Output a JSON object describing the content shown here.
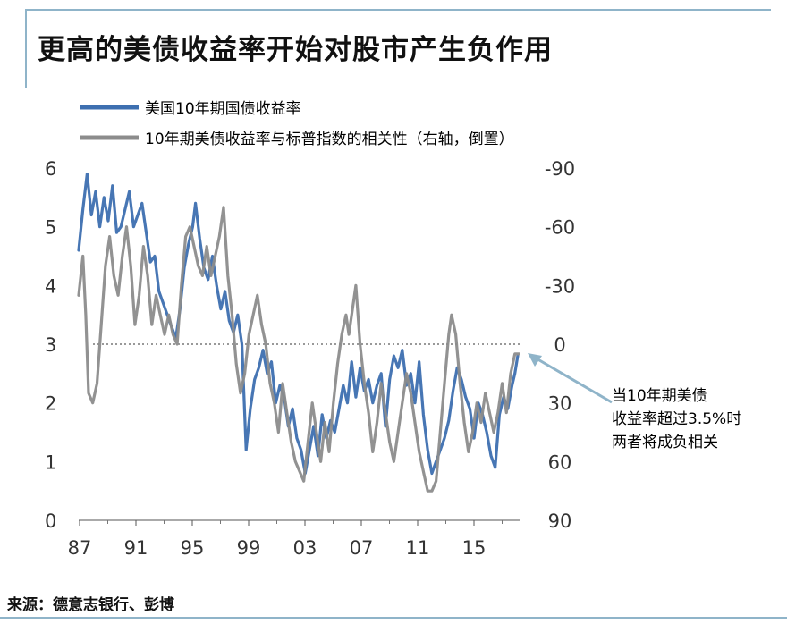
{
  "title": "更高的美债收益率开始对股市产生负作用",
  "source": "来源：德意志银行、彭博",
  "colors": {
    "yield": "#3d6fb0",
    "correlation": "#8c8c8c",
    "arrow": "#8fb4c9",
    "frame": "#8fb4c9"
  },
  "chart_data": {
    "type": "line",
    "legend_position": "top-left",
    "grid": false,
    "x_ticks": [
      "87",
      "91",
      "95",
      "99",
      "03",
      "07",
      "11",
      "15"
    ],
    "xlim": [
      1987,
      2018.4
    ],
    "y_left": {
      "ticks": [
        "6",
        "5",
        "4",
        "3",
        "2",
        "1",
        "0"
      ],
      "ylim": [
        0,
        6
      ]
    },
    "y_right": {
      "ticks": [
        "-90",
        "-60",
        "-30",
        "0",
        "30",
        "60",
        "90"
      ],
      "ylim": [
        -90,
        90
      ],
      "inverted": true
    },
    "reference_line": {
      "axis": "right",
      "value": 0,
      "style": "dotted"
    },
    "annotation": {
      "lines": [
        "当10年期美债",
        "收益率超过3.5%时",
        "两者将成负相关"
      ],
      "points_to": {
        "x": 2018.1,
        "y_right": 5
      }
    },
    "series": [
      {
        "name": "美国10年期国债收益率",
        "axis": "left",
        "points": [
          [
            1987.0,
            4.6
          ],
          [
            1987.3,
            5.3
          ],
          [
            1987.6,
            5.9
          ],
          [
            1987.9,
            5.2
          ],
          [
            1988.2,
            5.6
          ],
          [
            1988.5,
            5.0
          ],
          [
            1988.8,
            5.5
          ],
          [
            1989.1,
            5.1
          ],
          [
            1989.4,
            5.7
          ],
          [
            1989.7,
            4.9
          ],
          [
            1990.0,
            5.0
          ],
          [
            1990.3,
            5.3
          ],
          [
            1990.6,
            5.6
          ],
          [
            1990.9,
            5.0
          ],
          [
            1991.2,
            5.2
          ],
          [
            1991.5,
            5.4
          ],
          [
            1991.8,
            4.9
          ],
          [
            1992.1,
            4.4
          ],
          [
            1992.4,
            4.5
          ],
          [
            1992.7,
            3.9
          ],
          [
            1993.0,
            3.7
          ],
          [
            1993.3,
            3.5
          ],
          [
            1993.6,
            3.3
          ],
          [
            1993.9,
            3.1
          ],
          [
            1994.2,
            3.6
          ],
          [
            1994.5,
            4.3
          ],
          [
            1994.8,
            4.7
          ],
          [
            1995.1,
            5.0
          ],
          [
            1995.3,
            5.4
          ],
          [
            1995.6,
            4.8
          ],
          [
            1995.9,
            4.3
          ],
          [
            1996.2,
            4.1
          ],
          [
            1996.5,
            4.5
          ],
          [
            1996.8,
            4.0
          ],
          [
            1997.1,
            3.6
          ],
          [
            1997.4,
            3.9
          ],
          [
            1997.7,
            3.4
          ],
          [
            1998.0,
            3.2
          ],
          [
            1998.3,
            3.5
          ],
          [
            1998.6,
            3.0
          ],
          [
            1998.9,
            1.2
          ],
          [
            1999.2,
            1.9
          ],
          [
            1999.5,
            2.4
          ],
          [
            1999.8,
            2.6
          ],
          [
            2000.1,
            2.9
          ],
          [
            2000.4,
            2.5
          ],
          [
            2000.7,
            2.7
          ],
          [
            2001.0,
            2.0
          ],
          [
            2001.3,
            2.3
          ],
          [
            2001.6,
            2.1
          ],
          [
            2001.9,
            1.6
          ],
          [
            2002.2,
            1.9
          ],
          [
            2002.5,
            1.4
          ],
          [
            2002.8,
            1.2
          ],
          [
            2003.1,
            0.8
          ],
          [
            2003.4,
            1.2
          ],
          [
            2003.7,
            1.6
          ],
          [
            2004.0,
            1.1
          ],
          [
            2004.3,
            1.8
          ],
          [
            2004.6,
            1.4
          ],
          [
            2004.9,
            1.7
          ],
          [
            2005.2,
            1.5
          ],
          [
            2005.5,
            1.9
          ],
          [
            2005.8,
            2.3
          ],
          [
            2006.1,
            2.0
          ],
          [
            2006.4,
            2.7
          ],
          [
            2006.7,
            2.1
          ],
          [
            2007.0,
            2.6
          ],
          [
            2007.3,
            2.2
          ],
          [
            2007.6,
            2.4
          ],
          [
            2007.9,
            2.0
          ],
          [
            2008.2,
            2.3
          ],
          [
            2008.5,
            2.5
          ],
          [
            2008.8,
            1.6
          ],
          [
            2009.1,
            2.4
          ],
          [
            2009.4,
            2.8
          ],
          [
            2009.7,
            2.6
          ],
          [
            2010.0,
            2.9
          ],
          [
            2010.3,
            2.3
          ],
          [
            2010.6,
            2.5
          ],
          [
            2010.9,
            2.0
          ],
          [
            2011.2,
            2.7
          ],
          [
            2011.5,
            1.8
          ],
          [
            2011.8,
            1.2
          ],
          [
            2012.1,
            0.8
          ],
          [
            2012.4,
            1.0
          ],
          [
            2012.7,
            1.2
          ],
          [
            2013.0,
            1.4
          ],
          [
            2013.3,
            1.7
          ],
          [
            2013.6,
            2.2
          ],
          [
            2013.9,
            2.6
          ],
          [
            2014.2,
            2.4
          ],
          [
            2014.5,
            2.1
          ],
          [
            2014.8,
            1.9
          ],
          [
            2015.1,
            1.4
          ],
          [
            2015.4,
            2.0
          ],
          [
            2015.7,
            1.8
          ],
          [
            2016.0,
            1.5
          ],
          [
            2016.3,
            1.1
          ],
          [
            2016.6,
            0.9
          ],
          [
            2016.9,
            1.8
          ],
          [
            2017.2,
            2.1
          ],
          [
            2017.5,
            1.9
          ],
          [
            2017.8,
            2.3
          ],
          [
            2018.0,
            2.5
          ],
          [
            2018.2,
            2.8
          ]
        ]
      },
      {
        "name": "10年期美债收益率与标普指数的相关性（右轴，倒置）",
        "axis": "right",
        "points": [
          [
            1987.0,
            -25
          ],
          [
            1987.3,
            -45
          ],
          [
            1987.5,
            -15
          ],
          [
            1987.7,
            25
          ],
          [
            1988.0,
            30
          ],
          [
            1988.3,
            20
          ],
          [
            1988.6,
            -10
          ],
          [
            1988.9,
            -40
          ],
          [
            1989.2,
            -55
          ],
          [
            1989.5,
            -35
          ],
          [
            1989.8,
            -25
          ],
          [
            1990.1,
            -45
          ],
          [
            1990.4,
            -60
          ],
          [
            1990.7,
            -40
          ],
          [
            1991.0,
            -10
          ],
          [
            1991.3,
            -25
          ],
          [
            1991.6,
            -50
          ],
          [
            1991.9,
            -35
          ],
          [
            1992.2,
            -10
          ],
          [
            1992.5,
            -25
          ],
          [
            1992.8,
            -15
          ],
          [
            1993.1,
            -5
          ],
          [
            1993.4,
            -15
          ],
          [
            1993.7,
            -5
          ],
          [
            1994.0,
            0
          ],
          [
            1994.3,
            -30
          ],
          [
            1994.6,
            -55
          ],
          [
            1994.9,
            -60
          ],
          [
            1995.2,
            -50
          ],
          [
            1995.5,
            -40
          ],
          [
            1995.8,
            -35
          ],
          [
            1996.1,
            -50
          ],
          [
            1996.4,
            -35
          ],
          [
            1996.7,
            -45
          ],
          [
            1997.0,
            -55
          ],
          [
            1997.3,
            -70
          ],
          [
            1997.6,
            -35
          ],
          [
            1997.9,
            -15
          ],
          [
            1998.2,
            10
          ],
          [
            1998.5,
            25
          ],
          [
            1998.8,
            15
          ],
          [
            1999.1,
            -5
          ],
          [
            1999.4,
            -15
          ],
          [
            1999.7,
            -25
          ],
          [
            2000.0,
            -10
          ],
          [
            2000.3,
            0
          ],
          [
            2000.6,
            20
          ],
          [
            2000.9,
            30
          ],
          [
            2001.2,
            45
          ],
          [
            2001.5,
            20
          ],
          [
            2001.8,
            35
          ],
          [
            2002.1,
            50
          ],
          [
            2002.4,
            60
          ],
          [
            2002.7,
            65
          ],
          [
            2003.0,
            70
          ],
          [
            2003.3,
            50
          ],
          [
            2003.6,
            30
          ],
          [
            2003.9,
            45
          ],
          [
            2004.2,
            60
          ],
          [
            2004.5,
            40
          ],
          [
            2004.8,
            55
          ],
          [
            2005.1,
            30
          ],
          [
            2005.4,
            10
          ],
          [
            2005.7,
            -5
          ],
          [
            2006.0,
            -15
          ],
          [
            2006.2,
            -5
          ],
          [
            2006.5,
            -20
          ],
          [
            2006.7,
            -30
          ],
          [
            2007.0,
            0
          ],
          [
            2007.3,
            20
          ],
          [
            2007.6,
            35
          ],
          [
            2007.9,
            55
          ],
          [
            2008.2,
            40
          ],
          [
            2008.5,
            20
          ],
          [
            2008.8,
            35
          ],
          [
            2009.1,
            50
          ],
          [
            2009.4,
            60
          ],
          [
            2009.7,
            45
          ],
          [
            2010.0,
            30
          ],
          [
            2010.3,
            15
          ],
          [
            2010.6,
            25
          ],
          [
            2010.9,
            40
          ],
          [
            2011.2,
            55
          ],
          [
            2011.5,
            65
          ],
          [
            2011.8,
            75
          ],
          [
            2012.1,
            75
          ],
          [
            2012.4,
            70
          ],
          [
            2012.7,
            45
          ],
          [
            2013.0,
            20
          ],
          [
            2013.3,
            -5
          ],
          [
            2013.5,
            -15
          ],
          [
            2013.8,
            -5
          ],
          [
            2014.1,
            20
          ],
          [
            2014.4,
            40
          ],
          [
            2014.7,
            55
          ],
          [
            2015.0,
            45
          ],
          [
            2015.3,
            30
          ],
          [
            2015.6,
            40
          ],
          [
            2015.9,
            25
          ],
          [
            2016.2,
            35
          ],
          [
            2016.5,
            45
          ],
          [
            2016.8,
            35
          ],
          [
            2017.1,
            20
          ],
          [
            2017.4,
            35
          ],
          [
            2017.7,
            15
          ],
          [
            2018.0,
            5
          ],
          [
            2018.3,
            5
          ]
        ]
      }
    ]
  }
}
